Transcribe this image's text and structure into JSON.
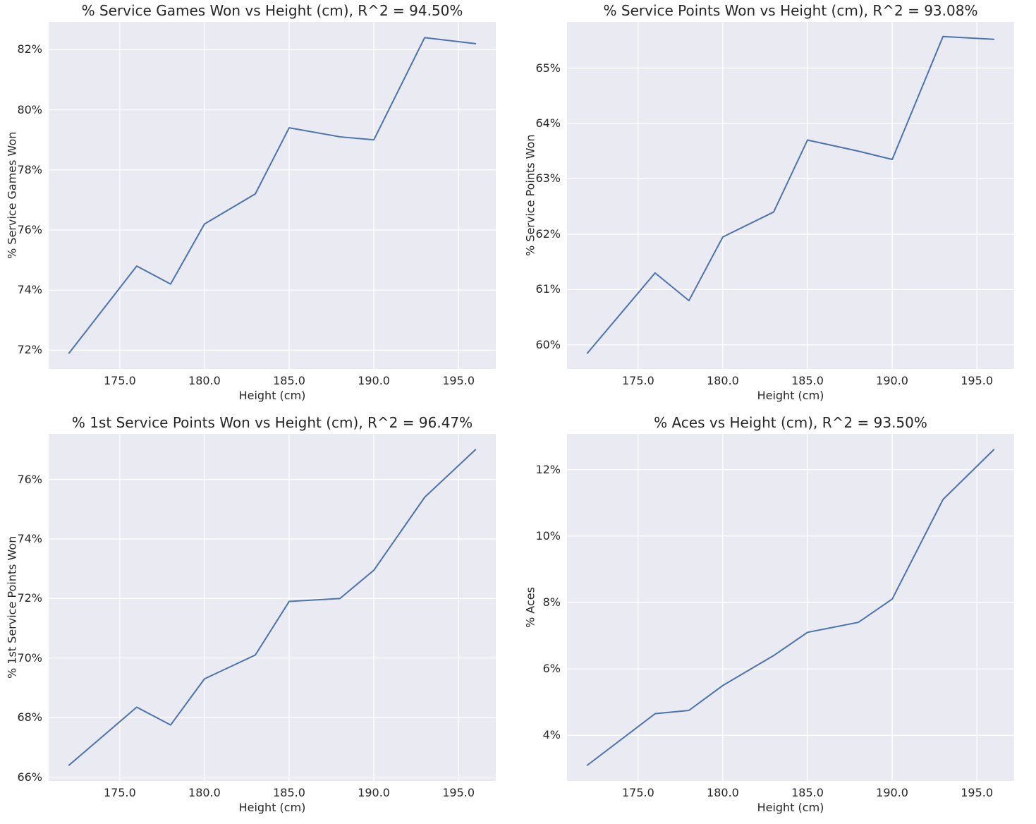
{
  "figure": {
    "background": "#ffffff",
    "plot_background": "#eaeaf2",
    "grid_color": "#ffffff",
    "line_color": "#4c72b0",
    "text_color": "#262626"
  },
  "chart_data": [
    {
      "type": "line",
      "title": "% Service Games Won vs Height (cm), R^2 = 94.50%",
      "xlabel": "Height (cm)",
      "ylabel": "% Service Games Won",
      "r_squared_label": "94.50%",
      "x": [
        172,
        176,
        178,
        180,
        183,
        185,
        188,
        190,
        193,
        196
      ],
      "y": [
        71.9,
        74.8,
        74.2,
        76.2,
        77.2,
        79.4,
        79.1,
        79.0,
        82.4,
        82.2
      ],
      "xlim": [
        170.8,
        197.2
      ],
      "ylim": [
        71.375,
        82.925
      ],
      "xticks": [
        175,
        180,
        185,
        190,
        195
      ],
      "xtick_labels": [
        "175.0",
        "180.0",
        "185.0",
        "190.0",
        "195.0"
      ],
      "yticks": [
        72,
        74,
        76,
        78,
        80,
        82
      ],
      "ytick_labels": [
        "72%",
        "74%",
        "76%",
        "78%",
        "80%",
        "82%"
      ],
      "grid": true,
      "legend": "none"
    },
    {
      "type": "line",
      "title": "% Service Points Won vs Height (cm), R^2 = 93.08%",
      "xlabel": "Height (cm)",
      "ylabel": "% Service Points Won",
      "r_squared_label": "93.08%",
      "x": [
        172,
        176,
        178,
        180,
        183,
        185,
        188,
        190,
        193,
        196
      ],
      "y": [
        59.85,
        61.3,
        60.8,
        61.95,
        62.4,
        63.7,
        63.5,
        63.35,
        65.57,
        65.52
      ],
      "xlim": [
        170.8,
        197.2
      ],
      "ylim": [
        59.565,
        65.835
      ],
      "xticks": [
        175,
        180,
        185,
        190,
        195
      ],
      "xtick_labels": [
        "175.0",
        "180.0",
        "185.0",
        "190.0",
        "195.0"
      ],
      "yticks": [
        60,
        61,
        62,
        63,
        64,
        65
      ],
      "ytick_labels": [
        "60%",
        "61%",
        "62%",
        "63%",
        "64%",
        "65%"
      ],
      "grid": true,
      "legend": "none"
    },
    {
      "type": "line",
      "title": "% 1st Service Points Won vs Height (cm), R^2 = 96.47%",
      "xlabel": "Height (cm)",
      "ylabel": "% 1st Service Points Won",
      "r_squared_label": "96.47%",
      "x": [
        172,
        176,
        178,
        180,
        183,
        185,
        188,
        190,
        193,
        196
      ],
      "y": [
        66.4,
        68.35,
        67.75,
        69.3,
        70.1,
        71.9,
        72.0,
        72.95,
        75.4,
        77.0
      ],
      "xlim": [
        170.8,
        197.2
      ],
      "ylim": [
        65.87,
        77.53
      ],
      "xticks": [
        175,
        180,
        185,
        190,
        195
      ],
      "xtick_labels": [
        "175.0",
        "180.0",
        "185.0",
        "190.0",
        "195.0"
      ],
      "yticks": [
        66,
        68,
        70,
        72,
        74,
        76
      ],
      "ytick_labels": [
        "66%",
        "68%",
        "70%",
        "72%",
        "74%",
        "76%"
      ],
      "grid": true,
      "legend": "none"
    },
    {
      "type": "line",
      "title": "% Aces vs Height (cm), R^2 = 93.50%",
      "xlabel": "Height (cm)",
      "ylabel": "% Aces",
      "r_squared_label": "93.50%",
      "x": [
        172,
        176,
        178,
        180,
        183,
        185,
        188,
        190,
        193,
        196
      ],
      "y": [
        3.1,
        4.65,
        4.75,
        5.5,
        6.4,
        7.1,
        7.4,
        8.1,
        11.1,
        12.6
      ],
      "xlim": [
        170.8,
        197.2
      ],
      "ylim": [
        2.625,
        13.075
      ],
      "xticks": [
        175,
        180,
        185,
        190,
        195
      ],
      "xtick_labels": [
        "175.0",
        "180.0",
        "185.0",
        "190.0",
        "195.0"
      ],
      "yticks": [
        4,
        6,
        8,
        10,
        12
      ],
      "ytick_labels": [
        "4%",
        "6%",
        "8%",
        "10%",
        "12%"
      ],
      "grid": true,
      "legend": "none"
    }
  ]
}
